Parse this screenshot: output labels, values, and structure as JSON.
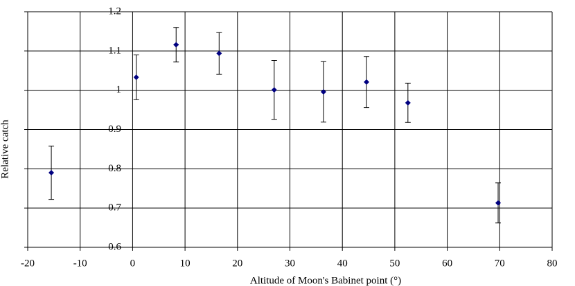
{
  "chart_data": {
    "type": "scatter",
    "x_label": "Altitude of Moon's Babinet point (°)",
    "y_label": "Relative catch",
    "x": [
      -15.5,
      0.7,
      8.3,
      16.5,
      27.0,
      36.4,
      44.6,
      52.5,
      69.7
    ],
    "values": [
      0.79,
      1.033,
      1.116,
      1.094,
      1.001,
      0.996,
      1.021,
      0.968,
      0.713
    ],
    "errors": [
      0.068,
      0.057,
      0.044,
      0.053,
      0.075,
      0.077,
      0.065,
      0.05,
      0.051
    ],
    "color": "#000080",
    "xlim": [
      -20,
      80
    ],
    "xticks": [
      -20,
      -10,
      0,
      10,
      20,
      30,
      40,
      50,
      60,
      70,
      80
    ],
    "ylim": [
      0.6,
      1.2
    ],
    "yticks": [
      0.6,
      0.7,
      0.8,
      0.9,
      1,
      1.1,
      1.2
    ],
    "grid": true
  }
}
